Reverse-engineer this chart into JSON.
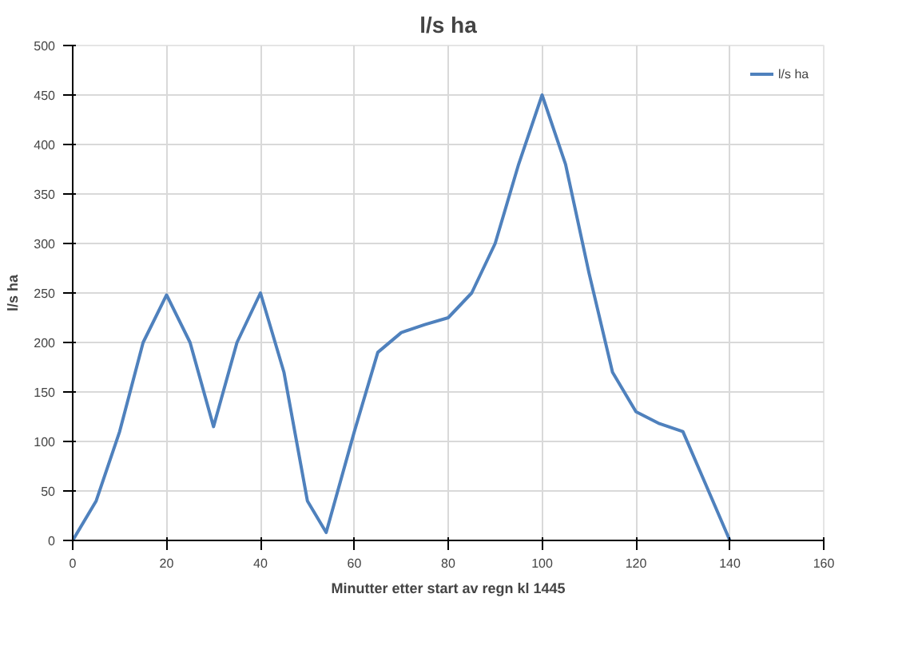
{
  "chart_data": {
    "type": "line",
    "title": "l/s ha",
    "xlabel": "Minutter etter start av regn kl 1445",
    "ylabel": "l/s ha",
    "x": [
      0,
      5,
      10,
      15,
      20,
      25,
      30,
      35,
      40,
      45,
      50,
      54,
      60,
      65,
      70,
      75,
      80,
      85,
      90,
      95,
      100,
      105,
      110,
      115,
      120,
      125,
      130,
      135,
      140
    ],
    "series": [
      {
        "name": "l/s ha",
        "color": "#4f81bd",
        "values": [
          0,
          40,
          110,
          200,
          248,
          200,
          115,
          200,
          250,
          170,
          40,
          8,
          110,
          190,
          210,
          218,
          225,
          250,
          300,
          380,
          450,
          380,
          270,
          170,
          130,
          118,
          110,
          55,
          0
        ]
      }
    ],
    "xlim": [
      0,
      160
    ],
    "xticks": [
      0,
      20,
      40,
      60,
      80,
      100,
      120,
      140,
      160
    ],
    "ylim": [
      0,
      500
    ],
    "yticks": [
      0,
      50,
      100,
      150,
      200,
      250,
      300,
      350,
      400,
      450,
      500
    ],
    "grid": true,
    "legend": "top right",
    "marker": "none",
    "line_style": "solid"
  }
}
